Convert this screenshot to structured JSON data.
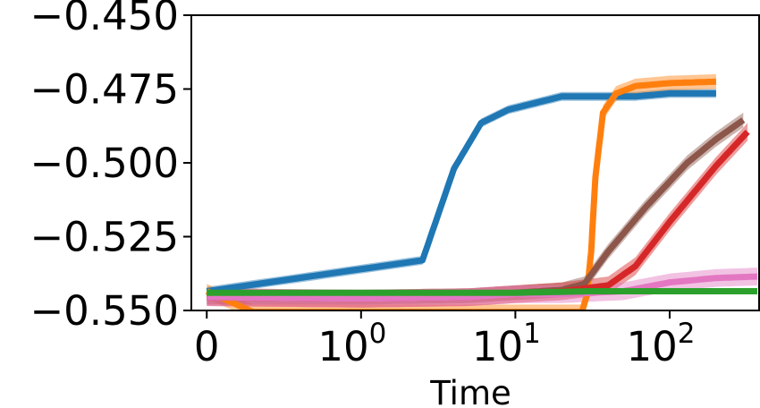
{
  "chart_data": {
    "type": "line",
    "title": "",
    "xlabel": "Time",
    "ylabel": "",
    "x_scale": "symlog",
    "xlim": [
      -0.1,
      380
    ],
    "ylim": [
      -0.55,
      -0.45
    ],
    "grid": false,
    "legend": "none",
    "x_ticks": [
      {
        "value": 0,
        "label": "0"
      },
      {
        "value": 1,
        "label": "10",
        "exp": "0"
      },
      {
        "value": 10,
        "label": "10",
        "exp": "1"
      },
      {
        "value": 100,
        "label": "10",
        "exp": "2"
      }
    ],
    "y_ticks": [
      {
        "value": -0.45,
        "label": "−0.450"
      },
      {
        "value": -0.475,
        "label": "−0.475"
      },
      {
        "value": -0.5,
        "label": "−0.500"
      },
      {
        "value": -0.525,
        "label": "−0.525"
      },
      {
        "value": -0.55,
        "label": "−0.550"
      }
    ],
    "series": [
      {
        "color": "#1f77b4",
        "x": [
          0,
          2.5,
          4,
          6,
          9,
          20,
          30,
          60,
          100,
          200
        ],
        "y": [
          -0.5435,
          -0.533,
          -0.502,
          -0.4865,
          -0.482,
          -0.4775,
          -0.4775,
          -0.4775,
          -0.4765,
          -0.4765
        ],
        "band": 0.0015
      },
      {
        "color": "#ff7f0e",
        "x": [
          0,
          0.3,
          27,
          29,
          31,
          33,
          37,
          45,
          60,
          100,
          200
        ],
        "y": [
          -0.5435,
          -0.5505,
          -0.5505,
          -0.545,
          -0.53,
          -0.505,
          -0.483,
          -0.4765,
          -0.474,
          -0.473,
          -0.4725
        ],
        "band": 0.0025
      },
      {
        "color": "#8c564b",
        "x": [
          0,
          1,
          5,
          10,
          20,
          28,
          40,
          70,
          130,
          200,
          300
        ],
        "y": [
          -0.5455,
          -0.5455,
          -0.545,
          -0.544,
          -0.543,
          -0.541,
          -0.53,
          -0.515,
          -0.5,
          -0.492,
          -0.4855
        ],
        "band": 0.0025
      },
      {
        "color": "#d62728",
        "x": [
          0,
          1,
          5,
          10,
          20,
          40,
          60,
          100,
          200,
          320
        ],
        "y": [
          -0.5455,
          -0.546,
          -0.5455,
          -0.5445,
          -0.5435,
          -0.5415,
          -0.535,
          -0.52,
          -0.501,
          -0.4895
        ],
        "band": 0.003
      },
      {
        "color": "#e377c2",
        "x": [
          0,
          1,
          5,
          10,
          20,
          50,
          100,
          200,
          370
        ],
        "y": [
          -0.5455,
          -0.546,
          -0.5455,
          -0.5445,
          -0.5445,
          -0.5435,
          -0.5405,
          -0.539,
          -0.5385
        ],
        "band": 0.003
      },
      {
        "color": "#2ca02c",
        "x": [
          0,
          1,
          5,
          10,
          30,
          100,
          370
        ],
        "y": [
          -0.544,
          -0.544,
          -0.544,
          -0.544,
          -0.5435,
          -0.5435,
          -0.5435
        ],
        "band": 0.0008
      }
    ]
  }
}
